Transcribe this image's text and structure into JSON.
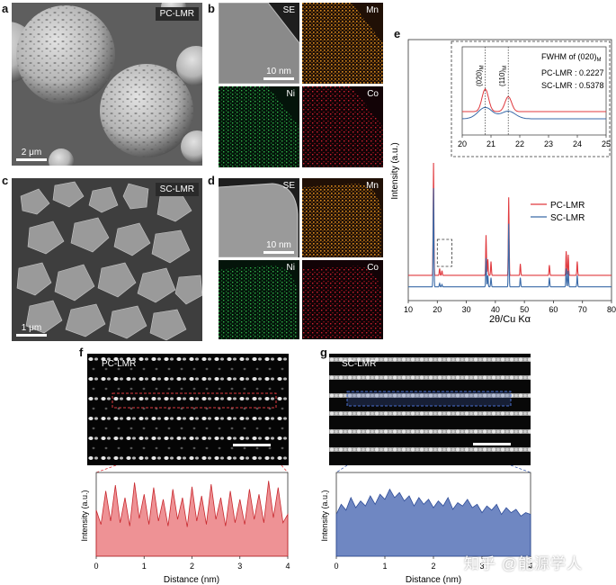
{
  "panels": {
    "a": {
      "letter": "a",
      "tag": "PC-LMR",
      "scale": "2 μm"
    },
    "b": {
      "letter": "b",
      "labels": [
        "SE",
        "Mn",
        "Ni",
        "Co"
      ],
      "scale": "10 nm"
    },
    "c": {
      "letter": "c",
      "tag": "SC-LMR",
      "scale": "1 μm"
    },
    "d": {
      "letter": "d",
      "labels": [
        "SE",
        "Mn",
        "Ni",
        "Co"
      ],
      "scale": "10 nm"
    },
    "e": {
      "letter": "e"
    },
    "f": {
      "letter": "f",
      "tag": "PC-LMR"
    },
    "g": {
      "letter": "g",
      "tag": "SC-LMR"
    }
  },
  "colors": {
    "pc": "#e0393e",
    "sc": "#3a6aa8",
    "mn": "#d98a1e",
    "ni": "#2fb24a",
    "co": "#d22030"
  },
  "watermark": "知乎 @能源学人",
  "chart_data": [
    {
      "id": "e-xrd",
      "type": "line",
      "xlabel": "2θ/Cu Kα",
      "ylabel": "Intensity (a.u.)",
      "xlim": [
        10,
        80
      ],
      "xticks": [
        "10",
        "20",
        "30",
        "40",
        "50",
        "60",
        "70",
        "80"
      ],
      "legend": "right",
      "series": [
        {
          "name": "PC-LMR",
          "color": "#e0393e",
          "baseline": 0.22,
          "peaks": [
            [
              18.7,
              0.98
            ],
            [
              20.8,
              0.06
            ],
            [
              21.6,
              0.04
            ],
            [
              36.8,
              0.35
            ],
            [
              37.4,
              0.14
            ],
            [
              38.5,
              0.12
            ],
            [
              44.6,
              0.68
            ],
            [
              48.6,
              0.1
            ],
            [
              58.6,
              0.09
            ],
            [
              64.4,
              0.21
            ],
            [
              65.1,
              0.18
            ],
            [
              68.2,
              0.12
            ]
          ]
        },
        {
          "name": "SC-LMR",
          "color": "#3a6aa8",
          "baseline": 0.12,
          "peaks": [
            [
              18.7,
              0.86
            ],
            [
              20.8,
              0.03
            ],
            [
              21.6,
              0.02
            ],
            [
              36.8,
              0.25
            ],
            [
              37.4,
              0.1
            ],
            [
              38.5,
              0.08
            ],
            [
              44.6,
              0.55
            ],
            [
              48.6,
              0.08
            ],
            [
              58.6,
              0.08
            ],
            [
              64.4,
              0.16
            ],
            [
              65.1,
              0.14
            ],
            [
              68.2,
              0.1
            ]
          ]
        }
      ],
      "inset": {
        "xlim": [
          20,
          25
        ],
        "xticks": [
          "20",
          "21",
          "22",
          "23",
          "24",
          "25"
        ],
        "title": "FWHM of (020)",
        "title_sub": "M",
        "peak_labels": [
          {
            "text": "(020)",
            "sub": "M",
            "x": 20.8
          },
          {
            "text": "(110)",
            "sub": "M",
            "x": 21.6
          }
        ],
        "fwhm": [
          {
            "name": "PC-LMR",
            "value": "0.2227"
          },
          {
            "name": "SC-LMR",
            "value": "0.5378"
          }
        ]
      }
    },
    {
      "id": "f-profile",
      "type": "area",
      "xlabel": "Distance (nm)",
      "ylabel": "Intensity (a.u.)",
      "xlim": [
        0,
        4
      ],
      "xticks": [
        "0",
        "1",
        "2",
        "3",
        "4"
      ],
      "ylim": [
        0,
        1
      ],
      "color": "#e0393e",
      "x": [
        0,
        0.1,
        0.2,
        0.3,
        0.4,
        0.5,
        0.6,
        0.7,
        0.8,
        0.9,
        1.0,
        1.1,
        1.2,
        1.3,
        1.4,
        1.5,
        1.6,
        1.7,
        1.8,
        1.9,
        2.0,
        2.1,
        2.2,
        2.3,
        2.4,
        2.5,
        2.6,
        2.7,
        2.8,
        2.9,
        3.0,
        3.1,
        3.2,
        3.3,
        3.4,
        3.5,
        3.6,
        3.7,
        3.8,
        3.9,
        4.0
      ],
      "values": [
        0.55,
        0.38,
        0.78,
        0.42,
        0.85,
        0.4,
        0.7,
        0.36,
        0.88,
        0.45,
        0.74,
        0.38,
        0.82,
        0.42,
        0.68,
        0.36,
        0.8,
        0.44,
        0.7,
        0.35,
        0.83,
        0.42,
        0.72,
        0.38,
        0.86,
        0.44,
        0.7,
        0.36,
        0.78,
        0.4,
        0.68,
        0.38,
        0.8,
        0.44,
        0.74,
        0.4,
        0.9,
        0.46,
        0.82,
        0.4,
        0.5
      ]
    },
    {
      "id": "g-profile",
      "type": "area",
      "xlabel": "Distance (nm)",
      "ylabel": "Intensity (a.u.)",
      "xlim": [
        0,
        4
      ],
      "xticks": [
        "0",
        "1",
        "2",
        "3",
        "4"
      ],
      "ylim": [
        0,
        1
      ],
      "color": "#3f5fae",
      "x": [
        0,
        0.1,
        0.2,
        0.3,
        0.4,
        0.5,
        0.6,
        0.7,
        0.8,
        0.9,
        1.0,
        1.1,
        1.2,
        1.3,
        1.4,
        1.5,
        1.6,
        1.7,
        1.8,
        1.9,
        2.0,
        2.1,
        2.2,
        2.3,
        2.4,
        2.5,
        2.6,
        2.7,
        2.8,
        2.9,
        3.0,
        3.1,
        3.2,
        3.3,
        3.4,
        3.5,
        3.6,
        3.7,
        3.8,
        3.9,
        4.0
      ],
      "values": [
        0.5,
        0.62,
        0.55,
        0.7,
        0.58,
        0.66,
        0.6,
        0.72,
        0.62,
        0.74,
        0.68,
        0.8,
        0.7,
        0.76,
        0.66,
        0.72,
        0.6,
        0.7,
        0.62,
        0.68,
        0.58,
        0.66,
        0.6,
        0.7,
        0.56,
        0.64,
        0.6,
        0.68,
        0.58,
        0.62,
        0.52,
        0.6,
        0.55,
        0.62,
        0.5,
        0.58,
        0.52,
        0.56,
        0.48,
        0.52,
        0.5
      ]
    }
  ]
}
